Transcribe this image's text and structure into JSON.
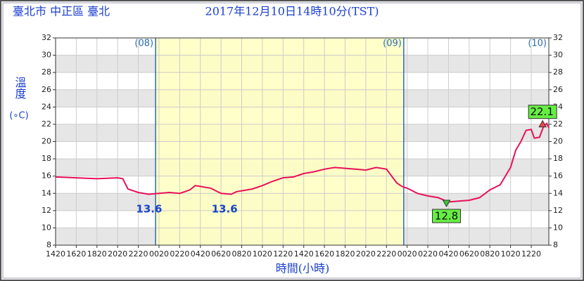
{
  "chart_data": {
    "type": "line",
    "location": "臺北市 中正區 臺北",
    "title": "2017年12月10日14時10分(TST)",
    "ylabel": "溫度",
    "yunit": "(∘C)",
    "xlabel": "時間(小時)",
    "xlim": [
      0,
      47.7
    ],
    "ylim": [
      8,
      32
    ],
    "yticks": [
      8,
      10,
      12,
      14,
      16,
      18,
      20,
      22,
      24,
      26,
      28,
      30,
      32
    ],
    "xticks": [
      {
        "value": 0,
        "label": "1420"
      },
      {
        "value": 2,
        "label": "1620"
      },
      {
        "value": 4,
        "label": "1820"
      },
      {
        "value": 6,
        "label": "2020"
      },
      {
        "value": 8,
        "label": "2220"
      },
      {
        "value": 10,
        "label": "0020"
      },
      {
        "value": 12,
        "label": "0220"
      },
      {
        "value": 14,
        "label": "0420"
      },
      {
        "value": 16,
        "label": "0620"
      },
      {
        "value": 18,
        "label": "0820"
      },
      {
        "value": 20,
        "label": "1020"
      },
      {
        "value": 22,
        "label": "1220"
      },
      {
        "value": 24,
        "label": "1420"
      },
      {
        "value": 26,
        "label": "1620"
      },
      {
        "value": 28,
        "label": "1820"
      },
      {
        "value": 30,
        "label": "2020"
      },
      {
        "value": 32,
        "label": "2220"
      },
      {
        "value": 34,
        "label": "0020"
      },
      {
        "value": 36,
        "label": "0220"
      },
      {
        "value": 38,
        "label": "0420"
      },
      {
        "value": 40,
        "label": "0620"
      },
      {
        "value": 42,
        "label": "0820"
      },
      {
        "value": 44,
        "label": "1020"
      },
      {
        "value": 46,
        "label": "1220"
      }
    ],
    "grid": true,
    "day_lines": [
      9.67,
      33.67
    ],
    "day_labels": [
      "(08)",
      "(09)",
      "(10)"
    ],
    "shaded": [
      9.67,
      33.67
    ],
    "series": [
      {
        "color": "#e8115a",
        "x": [
          0,
          2,
          4,
          6,
          6.5,
          7,
          8,
          9,
          10,
          11,
          12,
          13,
          13.5,
          14,
          15,
          16,
          17,
          17.5,
          18,
          19,
          20,
          21,
          22,
          23,
          24,
          25,
          26,
          27,
          28,
          29,
          30,
          31,
          32,
          32.5,
          33,
          33.5,
          34,
          35,
          36,
          37,
          38,
          39,
          40,
          41,
          42,
          43,
          44,
          44.5,
          45,
          45.5,
          46,
          46.3,
          46.8,
          47.2,
          47.5,
          47.7
        ],
        "values": [
          15.9,
          15.8,
          15.7,
          15.8,
          15.7,
          14.5,
          14.1,
          13.9,
          14.0,
          14.1,
          14.0,
          14.4,
          14.9,
          14.8,
          14.6,
          14.0,
          13.9,
          14.2,
          14.3,
          14.5,
          14.9,
          15.4,
          15.8,
          15.9,
          16.3,
          16.5,
          16.8,
          17.0,
          16.9,
          16.8,
          16.7,
          17.0,
          16.8,
          16.0,
          15.2,
          14.8,
          14.6,
          14.0,
          13.7,
          13.5,
          13.0,
          13.1,
          13.2,
          13.5,
          14.4,
          15.0,
          17.0,
          19.0,
          20.0,
          21.3,
          21.4,
          20.4,
          20.5,
          21.8,
          22.1,
          21.6
        ]
      }
    ],
    "annotations": [
      {
        "x": 8.5,
        "value": 13.6,
        "marker": "none"
      },
      {
        "x": 15.8,
        "value": 13.6,
        "marker": "none"
      },
      {
        "x": 37.8,
        "value": 12.8,
        "marker": "min"
      },
      {
        "x": 47.1,
        "value": 22.1,
        "marker": "max"
      }
    ]
  }
}
